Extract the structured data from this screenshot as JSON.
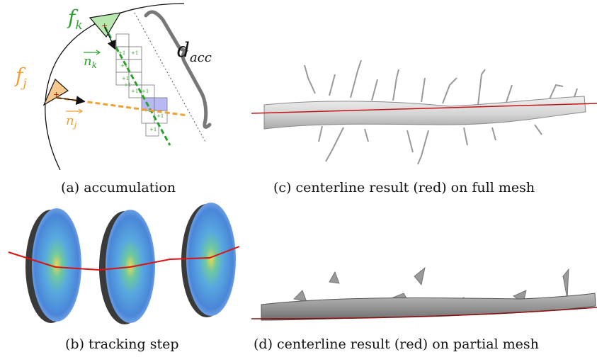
{
  "panel_a": {
    "caption": "(a) accumulation",
    "labels": {
      "fk_main": "f",
      "fk_sub": "k",
      "fj_main": "f",
      "fj_sub": "j",
      "nk_main": "n",
      "nk_sub": "k",
      "nj_main": "n",
      "nj_sub": "j",
      "dacc_main": "d",
      "dacc_sub": "acc"
    },
    "cell_text": "+1",
    "colors": {
      "green": "#2ca02c",
      "orange": "#f0a030",
      "violet": "#8080f0",
      "dark": "#333333"
    }
  },
  "panel_b": {
    "caption": "(b) tracking step"
  },
  "panel_c": {
    "caption": "(c) centerline result (red) on full mesh"
  },
  "panel_d": {
    "caption": "(d) centerline result (red) on partial mesh"
  },
  "colors": {
    "centerline": "#cc1111",
    "mesh_light": "#d8d8d8",
    "mesh_dark": "#888888"
  }
}
